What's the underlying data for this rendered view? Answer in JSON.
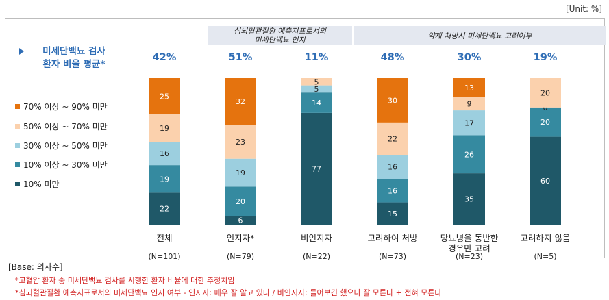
{
  "unit_label": "[Unit: %]",
  "side_title": "미세단백뇨 검사\n환자 비율 평균*",
  "legend": [
    {
      "label": "70% 이상 ~ 90% 미만",
      "color": "#e5730e"
    },
    {
      "label": "50% 이상 ~ 70% 미만",
      "color": "#fbd1ad"
    },
    {
      "label": "30% 이상 ~ 50% 미만",
      "color": "#9ccfdf"
    },
    {
      "label": "10% 이상 ~ 30% 미만",
      "color": "#358aa0"
    },
    {
      "label": "10% 미만",
      "color": "#1f5868"
    }
  ],
  "group_headers": [
    {
      "text": "심뇌혈관질환 예측지표로서의\n미세단백뇨 인지"
    },
    {
      "text": "약제 처방시 미세단백뇨 고려여부"
    }
  ],
  "base_label": "[Base: 의사수]",
  "notes": [
    "*고혈압 환자 중 미세단백뇨 검사를 시행한 환자 비율에 대한 추정치임",
    "*심뇌혈관질환 예측지표로서의 미세단백뇨 인지 여부 -  인지자: 매우 잘 알고 있다 / 비인지자: 들어보긴 했으나 잘 모른다 + 전혀 모른다"
  ],
  "chart_data": {
    "type": "bar",
    "stacked": true,
    "categories": [
      "전체",
      "인지자*",
      "비인지자",
      "고려하여 처방",
      "당뇨병을 동반한\n경우만 고려",
      "고려하지 않음"
    ],
    "n_labels": [
      "(N=101)",
      "(N=79)",
      "(N=22)",
      "(N=73)",
      "(N=23)",
      "(N=5)"
    ],
    "averages": [
      "42%",
      "51%",
      "11%",
      "48%",
      "30%",
      "19%"
    ],
    "series": [
      {
        "name": "10% 미만",
        "values": [
          22,
          6,
          77,
          15,
          35,
          60
        ]
      },
      {
        "name": "10% 이상 ~ 30% 미만",
        "values": [
          19,
          20,
          14,
          16,
          26,
          20
        ]
      },
      {
        "name": "30% 이상 ~ 50% 미만",
        "values": [
          16,
          19,
          5,
          16,
          17,
          0
        ]
      },
      {
        "name": "50% 이상 ~ 70% 미만",
        "values": [
          19,
          23,
          5,
          22,
          9,
          20
        ]
      },
      {
        "name": "70% 이상 ~ 90% 미만",
        "values": [
          25,
          32,
          0,
          30,
          13,
          0
        ]
      }
    ],
    "ylim": [
      0,
      100
    ]
  }
}
